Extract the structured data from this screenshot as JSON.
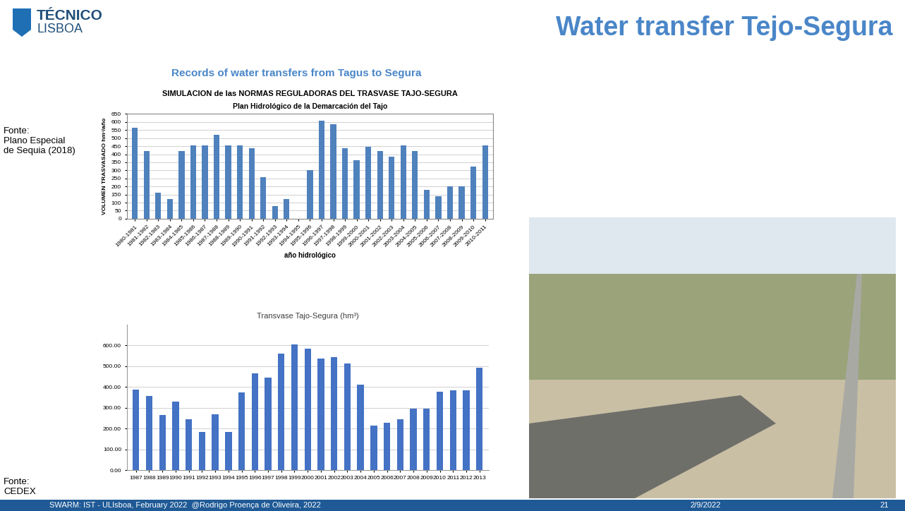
{
  "slide": {
    "logo": [
      "TÉCNICO",
      "LISBOA"
    ],
    "title": "Water transfer Tejo-Segura",
    "heading": "Records of water transfers from Tagus to Segura",
    "sources": [
      [
        "Fonte:",
        "Plano Especial",
        "de Sequia (2018)"
      ],
      [
        "Fonte:",
        "CEDEX"
      ]
    ],
    "footer": "SWARM: IST - ULIsboa, February 2022  @Rodrigo Proença de Oliveira, 2022",
    "date": "2/9/2022",
    "page": "21"
  },
  "chart_data": [
    {
      "type": "bar",
      "title": "SIMULACION de las NORMAS REGULADORAS DEL TRASVASE TAJO-SEGURA",
      "subtitle": "Plan Hidrológico de la Demarcación del Tajo",
      "x_label": "año hidrológico",
      "y_label": "VOLUMEN TRASVASADO hm³/año",
      "categories": [
        "1980-1981",
        "1981-1982",
        "1982-1983",
        "1983-1984",
        "1984-1985",
        "1985-1986",
        "1986-1987",
        "1987-1988",
        "1988-1989",
        "1989-1990",
        "1990-1991",
        "1991-1992",
        "1992-1993",
        "1993-1994",
        "1994-1995",
        "1995-1996",
        "1996-1997",
        "1997-1998",
        "1998-1999",
        "1999-2000",
        "2000-2001",
        "2001-2002",
        "2002-2003",
        "2003-2004",
        "2004-2005",
        "2005-2006",
        "2006-2007",
        "2007-2008",
        "2008-2009",
        "2009-2010",
        "2010-2011"
      ],
      "values": [
        565,
        420,
        160,
        120,
        420,
        455,
        455,
        520,
        455,
        455,
        438,
        258,
        80,
        120,
        0,
        303,
        608,
        588,
        438,
        365,
        448,
        420,
        385,
        455,
        420,
        180,
        140,
        200,
        200,
        323,
        455
      ],
      "color": "#4f81bd",
      "ylim": [
        0,
        650
      ],
      "yticks": [
        0,
        50,
        100,
        150,
        200,
        250,
        300,
        350,
        400,
        450,
        500,
        550,
        600,
        650
      ],
      "grid": true
    },
    {
      "type": "bar",
      "title": "Transvase Tajo-Segura (hm³)",
      "categories": [
        "1987",
        "1988",
        "1989",
        "1990",
        "1991",
        "1992",
        "1993",
        "1994",
        "1995",
        "1996",
        "1997",
        "1998",
        "1999",
        "2000",
        "2001",
        "2002",
        "2003",
        "2004",
        "2005",
        "2006",
        "2007",
        "2008",
        "2009",
        "2010",
        "2011",
        "2012",
        "2013"
      ],
      "values": [
        388,
        358,
        265,
        328,
        243,
        183,
        268,
        185,
        372,
        465,
        445,
        560,
        605,
        585,
        535,
        543,
        512,
        412,
        215,
        227,
        245,
        297,
        295,
        378,
        385,
        385,
        493
      ],
      "color": "#4472c4",
      "ylim": [
        0,
        700
      ],
      "yticks": [
        {
          "value": 0,
          "label": "0.00"
        },
        {
          "value": 100,
          "label": "100.00"
        },
        {
          "value": 200,
          "label": "200.00"
        },
        {
          "value": 300,
          "label": "300.00"
        },
        {
          "value": 400,
          "label": "400.00"
        },
        {
          "value": 500,
          "label": "500.00"
        },
        {
          "value": 600,
          "label": "600.00"
        }
      ],
      "grid": true
    }
  ]
}
